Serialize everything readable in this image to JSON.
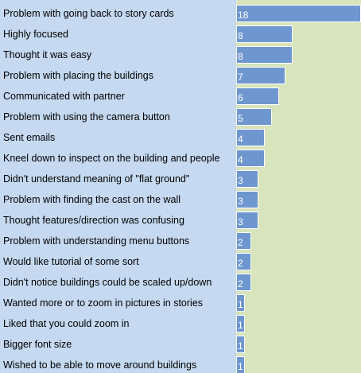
{
  "chart_data": {
    "type": "bar",
    "orientation": "horizontal",
    "categories": [
      "Problem with going back to story cards",
      "Highly focused",
      "Thought it was easy",
      "Problem with placing the buildings",
      "Communicated with partner",
      "Problem with using the camera button",
      "Sent emails",
      "Kneel down to inspect on the building and people",
      "Didn't understand meaning of \"flat ground\"",
      "Problem with finding the cast on the wall",
      "Thought features/direction was confusing",
      "Problem with understanding menu buttons",
      "Would like tutorial of some sort",
      "Didn't notice buildings could be scaled up/down",
      "Wanted more or to zoom in pictures in stories",
      "Liked that you could zoom in",
      "Bigger font size",
      "Wished to be able to move around buildings"
    ],
    "values": [
      18,
      8,
      8,
      7,
      6,
      5,
      4,
      4,
      3,
      3,
      3,
      2,
      2,
      2,
      1,
      1,
      1,
      1
    ],
    "value_labels": true,
    "xlim": [
      0,
      18
    ],
    "grid": false,
    "legend": "none",
    "colors": {
      "bar": "#6f97cf",
      "bar_border": "#ffffff",
      "label_background": "#c5d9f1",
      "plot_background": "#d8e4bc",
      "value_text": "#ffffff"
    }
  }
}
